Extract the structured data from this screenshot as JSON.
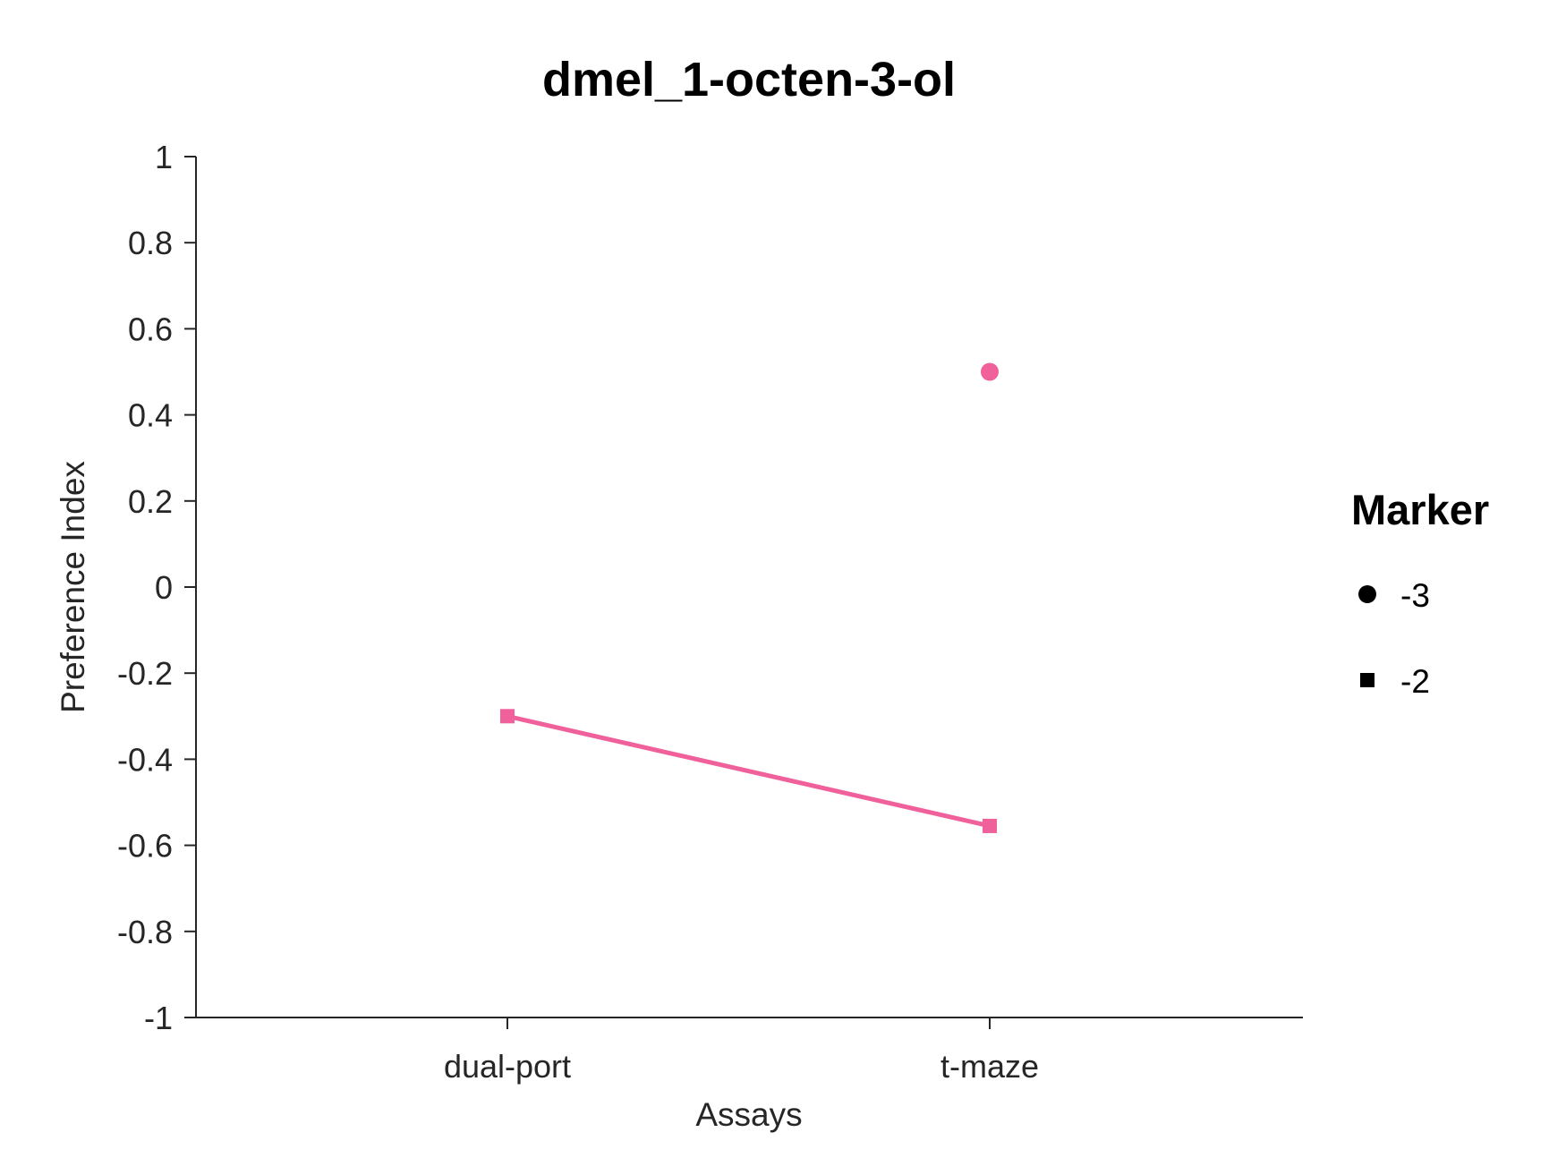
{
  "chart_data": {
    "type": "line",
    "title": "dmel_1-octen-3-ol",
    "xlabel": "Assays",
    "ylabel": "Preference Index",
    "categories": [
      "dual-port",
      "t-maze"
    ],
    "ylim": [
      -1,
      1
    ],
    "yticks": [
      1,
      0.8,
      0.6,
      0.4,
      0.2,
      0,
      -0.2,
      -0.4,
      -0.6,
      -0.8,
      -1
    ],
    "ytick_labels": [
      "1",
      "0.8",
      "0.6",
      "0.4",
      "0.2",
      "0",
      "-0.2",
      "-0.4",
      "-0.6",
      "-0.8",
      "-1"
    ],
    "grid": false,
    "color": "#f0609a",
    "series": [
      {
        "marker": "circle",
        "connected": false,
        "points": [
          {
            "category": "t-maze",
            "value": 0.5
          }
        ]
      },
      {
        "marker": "square",
        "connected": true,
        "points": [
          {
            "category": "dual-port",
            "value": -0.3
          },
          {
            "category": "t-maze",
            "value": -0.555
          }
        ]
      }
    ],
    "legend": {
      "title": "Marker",
      "position": "right",
      "entries": [
        {
          "label": "-3",
          "marker": "circle"
        },
        {
          "label": "-2",
          "marker": "square"
        }
      ]
    }
  }
}
